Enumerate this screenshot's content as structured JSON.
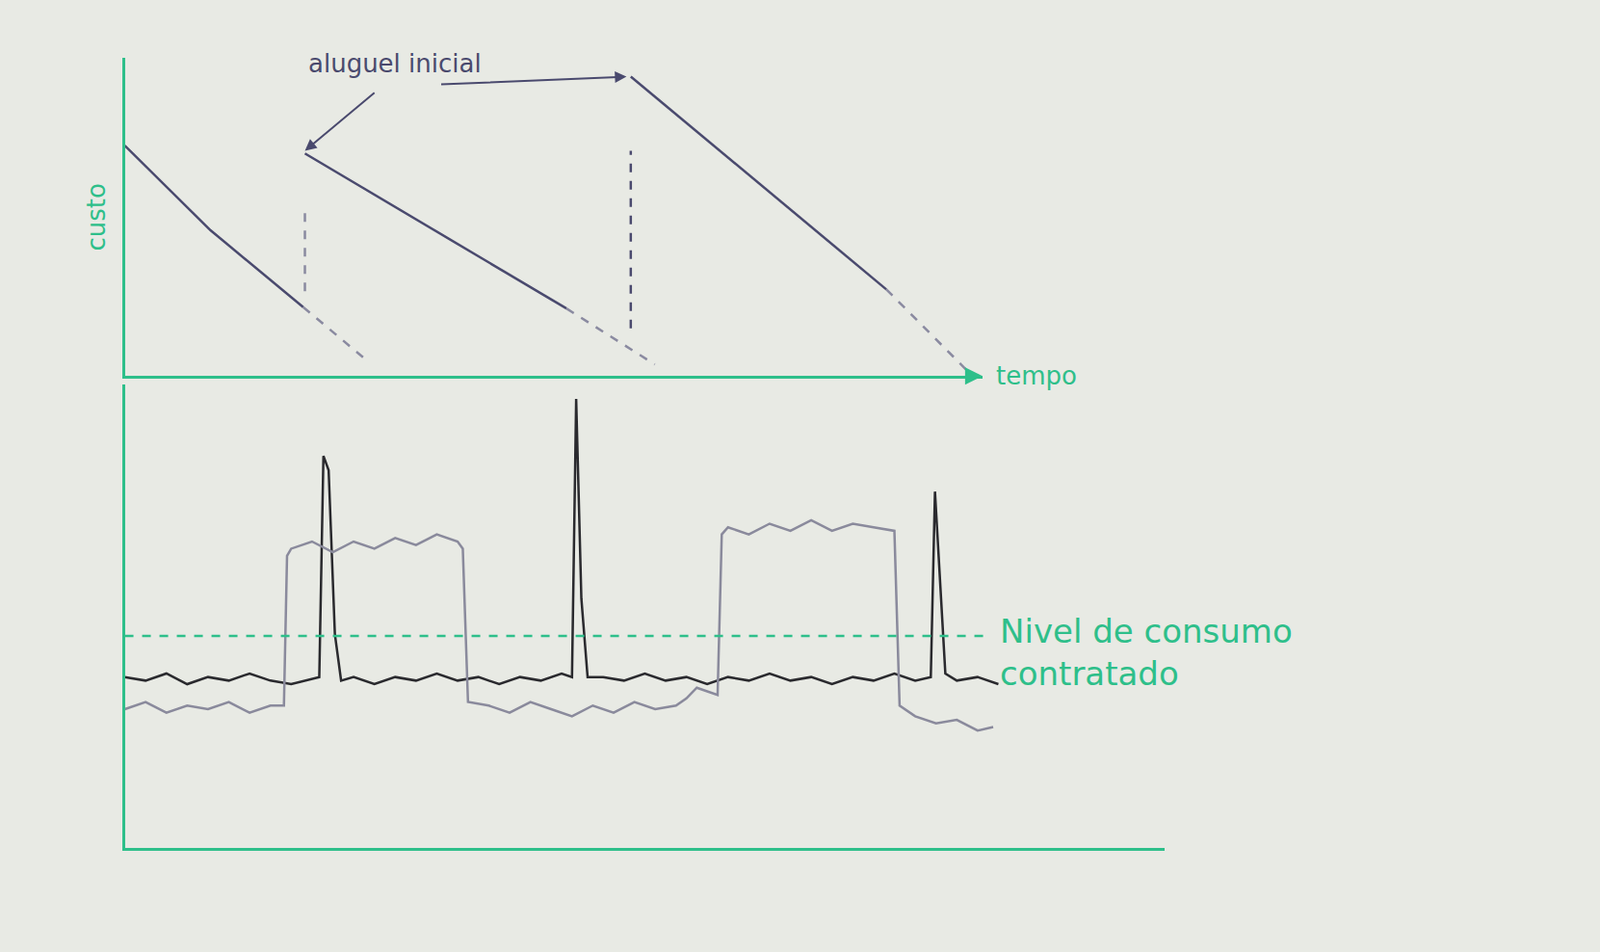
{
  "chart_data": [
    {
      "type": "line",
      "x_label": "tempo",
      "y_label": "custo",
      "xlim": [
        0,
        100
      ],
      "ylim": [
        0,
        120
      ],
      "tick_labels": false,
      "grid": false,
      "series": [
        {
          "color": "#4a4a6e",
          "line_style": "solid",
          "x": [
            0,
            10,
            20.8
          ],
          "values": [
            87,
            55,
            26
          ]
        },
        {
          "color": "#8a8aa0",
          "line_style": "dashed",
          "x": [
            20.8,
            28
          ],
          "values": [
            26,
            6.5
          ]
        },
        {
          "color": "#4a4a6e",
          "line_style": "solid",
          "x": [
            21,
            51.5
          ],
          "values": [
            84,
            25.5
          ]
        },
        {
          "color": "#8a8aa0",
          "line_style": "dashed",
          "x": [
            51.5,
            61.8
          ],
          "values": [
            25.5,
            4.4
          ]
        },
        {
          "color": "#4a4a6e",
          "line_style": "solid",
          "x": [
            59,
            88.8
          ],
          "values": [
            113,
            32.7
          ]
        },
        {
          "color": "#8a8aa0",
          "line_style": "dashed",
          "x": [
            88.8,
            98.3
          ],
          "values": [
            32.7,
            1.8
          ]
        },
        {
          "color": "#8a8aa0",
          "line_style": "dashed",
          "x": [
            21,
            21
          ],
          "values": [
            32,
            64
          ]
        },
        {
          "color": "#4a4a6e",
          "line_style": "dashed",
          "x": [
            59,
            59
          ],
          "values": [
            18,
            85
          ]
        }
      ],
      "annotations": [
        {
          "text": "aluguel inicial",
          "x": 31.5,
          "y": 118,
          "points_to": [
            [
              21,
              85
            ],
            [
              58.5,
              113
            ]
          ]
        }
      ]
    },
    {
      "type": "line",
      "xlim": [
        0,
        100
      ],
      "ylim": [
        0,
        130
      ],
      "tick_labels": false,
      "grid": false,
      "series": [
        {
          "color": "#2a2a2e",
          "line_style": "solid",
          "x": [
            0,
            2,
            4,
            6,
            8,
            10,
            12,
            14,
            16,
            17.5,
            18.7,
            19.1,
            19.6,
            20.2,
            20.8,
            22,
            24,
            26,
            28,
            30,
            32,
            34,
            36,
            38,
            40,
            42,
            43,
            43.4,
            43.9,
            44.5,
            46,
            48,
            50,
            52,
            54,
            56,
            58,
            60,
            62,
            64,
            66,
            68,
            70,
            72,
            74,
            76,
            77.5,
            77.9,
            78.3,
            78.9,
            80,
            82,
            84
          ],
          "values": [
            48,
            47,
            49,
            46,
            48,
            47,
            49,
            47,
            46,
            47,
            48,
            110,
            106,
            60,
            47,
            48,
            46,
            48,
            47,
            49,
            47,
            48,
            46,
            48,
            47,
            49,
            48,
            126,
            70,
            48,
            48,
            47,
            49,
            47,
            48,
            46,
            48,
            47,
            49,
            47,
            48,
            46,
            48,
            47,
            49,
            47,
            48,
            100,
            80,
            49,
            47,
            48,
            46
          ]
        },
        {
          "color": "#8a8a9c",
          "line_style": "solid",
          "x": [
            0,
            2,
            4,
            6,
            8,
            10,
            12,
            14,
            15.3,
            15.6,
            16,
            18,
            20,
            22,
            24,
            26,
            28,
            30,
            32,
            32.5,
            33,
            35,
            37,
            39,
            41,
            43,
            45,
            47,
            49,
            51,
            53,
            54,
            55,
            57,
            57.4,
            58,
            60,
            62,
            64,
            66,
            68,
            70,
            72,
            74,
            74.5,
            76,
            78,
            80,
            82,
            83.5
          ],
          "values": [
            39,
            41,
            38,
            40,
            39,
            41,
            38,
            40,
            40,
            82,
            84,
            86,
            83,
            86,
            84,
            87,
            85,
            88,
            86,
            84,
            41,
            40,
            38,
            41,
            39,
            37,
            40,
            38,
            41,
            39,
            40,
            42,
            45,
            43,
            88,
            90,
            88,
            91,
            89,
            92,
            89,
            91,
            90,
            89,
            40,
            37,
            35,
            36,
            33,
            34
          ]
        },
        {
          "color": "#2ebf8a",
          "line_style": "dashed",
          "x": [
            0,
            83
          ],
          "values": [
            59.5,
            59.5
          ]
        }
      ],
      "annotations": [
        {
          "lines": [
            "Nivel de consumo",
            "contratado"
          ],
          "x": 84,
          "y": 55
        }
      ]
    }
  ]
}
